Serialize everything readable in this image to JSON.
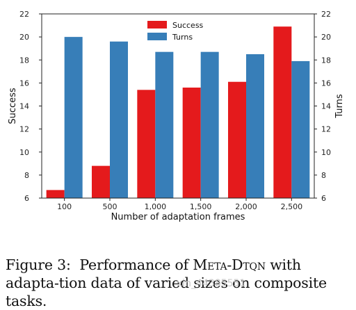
{
  "chart_data": {
    "type": "bar",
    "xlabel": "Number of adaptation frames",
    "ylabel_left": "Success",
    "ylabel_right": "Turns",
    "categories": [
      "100",
      "500",
      "1,000",
      "1,500",
      "2,000",
      "2,500"
    ],
    "ylim": [
      6,
      22
    ],
    "yticks": [
      "6",
      "8",
      "10",
      "12",
      "14",
      "16",
      "18",
      "20",
      "22"
    ],
    "series": [
      {
        "name": "Success",
        "color": "#e41a1c",
        "values": [
          6.7,
          8.8,
          15.4,
          15.6,
          16.1,
          20.9
        ]
      },
      {
        "name": "Turns",
        "color": "#377eb8",
        "values": [
          20.0,
          19.6,
          18.7,
          18.7,
          18.5,
          17.9
        ]
      }
    ],
    "legend": "top-center",
    "grid": false
  },
  "caption": {
    "prefix": "Figure 3:",
    "text_a": "Performance of ",
    "method": "Meta-Dtqn",
    "text_b": " with adapta-tion data of varied sizes on composite tasks."
  },
  "watermark": "xin_44385551"
}
